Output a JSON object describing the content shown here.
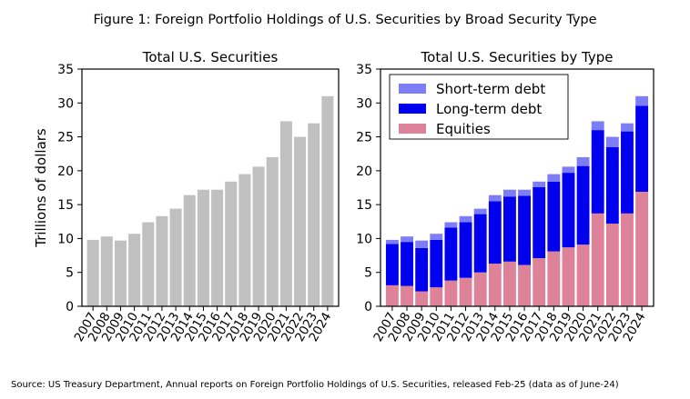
{
  "figure_title": "Figure 1: Foreign Portfolio Holdings of U.S. Securities by Broad Security Type",
  "source": "Source: US Treasury Department, Annual reports on Foreign Portfolio Holdings of U.S. Securities, released Feb-25 (data as of June-24)",
  "chart_data": [
    {
      "type": "bar",
      "title": "Total U.S. Securities",
      "ylabel": "Trillions of dollars",
      "xlabel": "",
      "ylim": [
        0,
        35
      ],
      "yticks": [
        0,
        5,
        10,
        15,
        20,
        25,
        30,
        35
      ],
      "categories": [
        "2007",
        "2008",
        "2009",
        "2010",
        "2011",
        "2012",
        "2013",
        "2014",
        "2015",
        "2016",
        "2017",
        "2018",
        "2019",
        "2020",
        "2021",
        "2022",
        "2023",
        "2024"
      ],
      "series": [
        {
          "name": "Total",
          "color": "#c0c0c0",
          "values": [
            9.8,
            10.3,
            9.7,
            10.7,
            12.4,
            13.3,
            14.4,
            16.4,
            17.2,
            17.2,
            18.4,
            19.5,
            20.6,
            22.0,
            27.3,
            25.0,
            27.0,
            31.0
          ]
        }
      ]
    },
    {
      "type": "bar",
      "stacked": true,
      "title": "Total U.S. Securities by Type",
      "xlabel": "",
      "ylabel": "",
      "ylim": [
        0,
        35
      ],
      "yticks": [
        0,
        5,
        10,
        15,
        20,
        25,
        30,
        35
      ],
      "legend_position": "top-left",
      "categories": [
        "2007",
        "2008",
        "2009",
        "2010",
        "2011",
        "2012",
        "2013",
        "2014",
        "2015",
        "2016",
        "2017",
        "2018",
        "2019",
        "2020",
        "2021",
        "2022",
        "2023",
        "2024"
      ],
      "series": [
        {
          "name": "Equities",
          "color": "#dd8299",
          "values": [
            3.1,
            3.0,
            2.2,
            2.8,
            3.8,
            4.2,
            5.0,
            6.3,
            6.6,
            6.1,
            7.1,
            8.1,
            8.7,
            9.1,
            13.7,
            12.2,
            13.7,
            16.9
          ]
        },
        {
          "name": "Long-term debt",
          "color": "#0000ee",
          "values": [
            6.1,
            6.5,
            6.4,
            7.0,
            7.8,
            8.2,
            8.6,
            9.2,
            9.6,
            10.2,
            10.5,
            10.3,
            11.0,
            11.6,
            12.3,
            11.3,
            12.1,
            12.7
          ]
        },
        {
          "name": "Short-term debt",
          "color": "#7d7df5",
          "values": [
            0.6,
            0.8,
            1.1,
            0.9,
            0.8,
            0.9,
            0.8,
            0.9,
            1.0,
            0.9,
            0.8,
            1.1,
            0.9,
            1.3,
            1.3,
            1.5,
            1.2,
            1.4
          ]
        }
      ]
    }
  ]
}
